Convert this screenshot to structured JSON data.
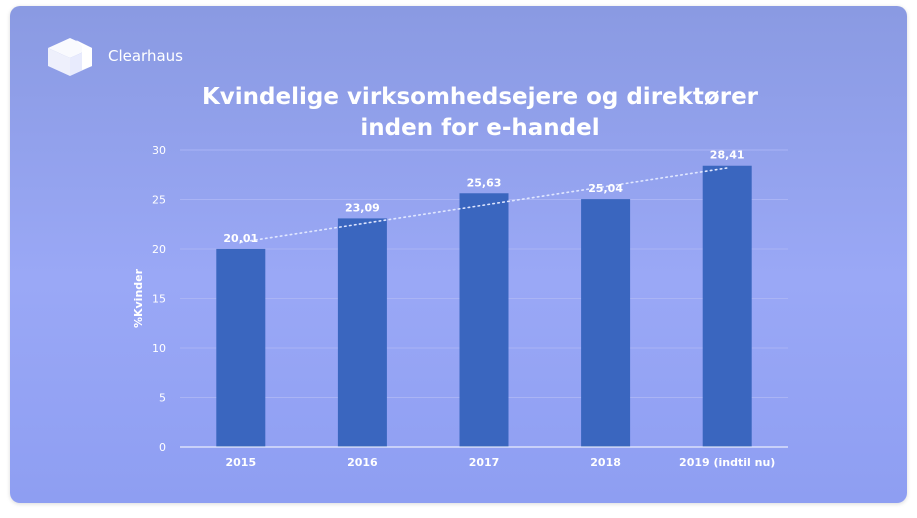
{
  "brand": {
    "name": "Clearhaus",
    "logo_icon": "cube-logo-icon"
  },
  "colors": {
    "bar": "#3a66bf",
    "background": "#929ff0",
    "text": "#ffffff"
  },
  "chart_data": {
    "type": "bar",
    "title": "Kvindelige virksomhedsejere og direktører inden for e-handel",
    "title_lines": [
      "Kvindelige virksomhedsejere og direktører",
      "inden for e-handel"
    ],
    "categories": [
      "2015",
      "2016",
      "2017",
      "2018",
      "2019 (indtil nu)"
    ],
    "values": [
      20.01,
      23.09,
      25.63,
      25.04,
      28.41
    ],
    "data_labels": [
      "20,01",
      "23,09",
      "25,63",
      "25,04",
      "28,41"
    ],
    "xlabel": "",
    "ylabel": "%Kvinder",
    "ylim": [
      0,
      30
    ],
    "yticks": [
      0,
      5,
      10,
      15,
      20,
      25,
      30
    ],
    "grid": true,
    "trendline": "linear-dotted",
    "legend": "none"
  }
}
